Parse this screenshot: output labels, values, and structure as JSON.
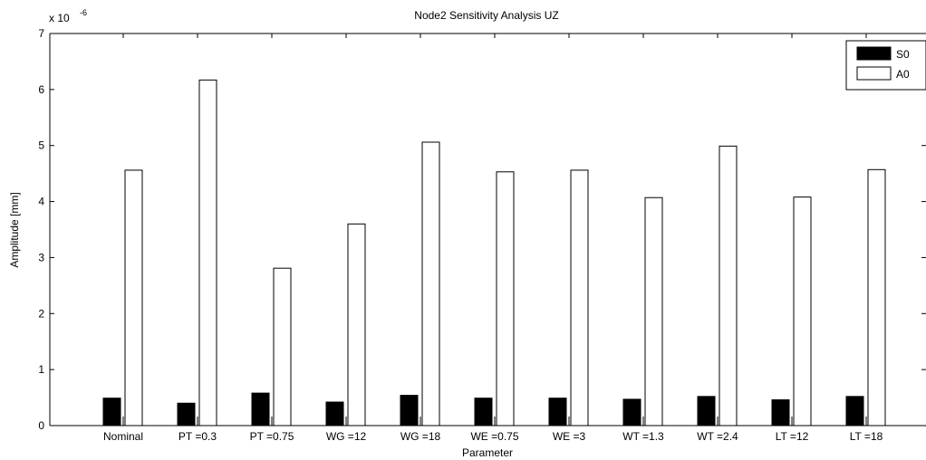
{
  "chart_data": {
    "type": "bar",
    "title": "Node2 Sensitivity Analysis UZ",
    "xlabel": "Parameter",
    "ylabel": "Amplitude [mm]",
    "exponent_label": "x 10",
    "exponent_power": "-6",
    "ylim": [
      0,
      7
    ],
    "yticks": [
      "0",
      "1",
      "2",
      "3",
      "4",
      "5",
      "6",
      "7"
    ],
    "categories": [
      "Nominal",
      "PT =0.3",
      "PT =0.75",
      "WG =12",
      "WG =18",
      "WE =0.75",
      "WE =3",
      "WT =1.3",
      "WT =2.4",
      "LT =12",
      "LT =18"
    ],
    "series": [
      {
        "name": "S0",
        "color": "#000000",
        "values": [
          0.49,
          0.4,
          0.58,
          0.42,
          0.54,
          0.49,
          0.49,
          0.47,
          0.52,
          0.46,
          0.52
        ]
      },
      {
        "name": "A0",
        "color": "#ffffff",
        "values": [
          4.56,
          6.17,
          2.81,
          3.6,
          5.06,
          4.53,
          4.56,
          4.07,
          4.99,
          4.08,
          4.57
        ]
      }
    ],
    "legend_position": "top-right",
    "grid": false
  }
}
